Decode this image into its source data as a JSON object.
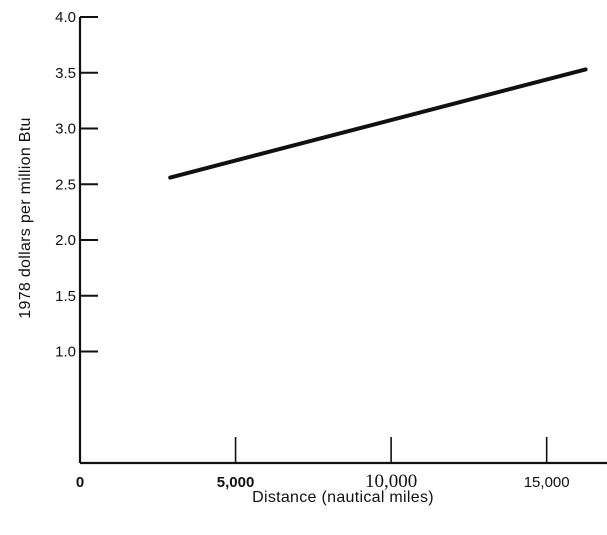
{
  "chart_data": {
    "type": "line",
    "title": "",
    "xlabel": "Distance  (nautical  miles)",
    "ylabel": "1978 dollars per million Btu",
    "xlim": [
      0,
      18000
    ],
    "ylim": [
      0,
      4.0
    ],
    "x_ticks": [
      {
        "value": 0,
        "label": "0",
        "style": "bold"
      },
      {
        "value": 5000,
        "label": "5,000",
        "style": "bold"
      },
      {
        "value": 10000,
        "label": "10,000",
        "style": "serif"
      },
      {
        "value": 15000,
        "label": "15,000",
        "style": "normal"
      }
    ],
    "y_ticks": [
      {
        "value": 1.0,
        "label": "1.0"
      },
      {
        "value": 1.5,
        "label": "1.5"
      },
      {
        "value": 2.0,
        "label": "2.0"
      },
      {
        "value": 2.5,
        "label": "2.5"
      },
      {
        "value": 3.0,
        "label": "3.0"
      },
      {
        "value": 3.5,
        "label": "3.5"
      },
      {
        "value": 4.0,
        "label": "4.0"
      }
    ],
    "grid": false,
    "series": [
      {
        "x": [
          2900,
          16250
        ],
        "y": [
          2.56,
          3.53
        ],
        "color": "#111111"
      }
    ]
  }
}
